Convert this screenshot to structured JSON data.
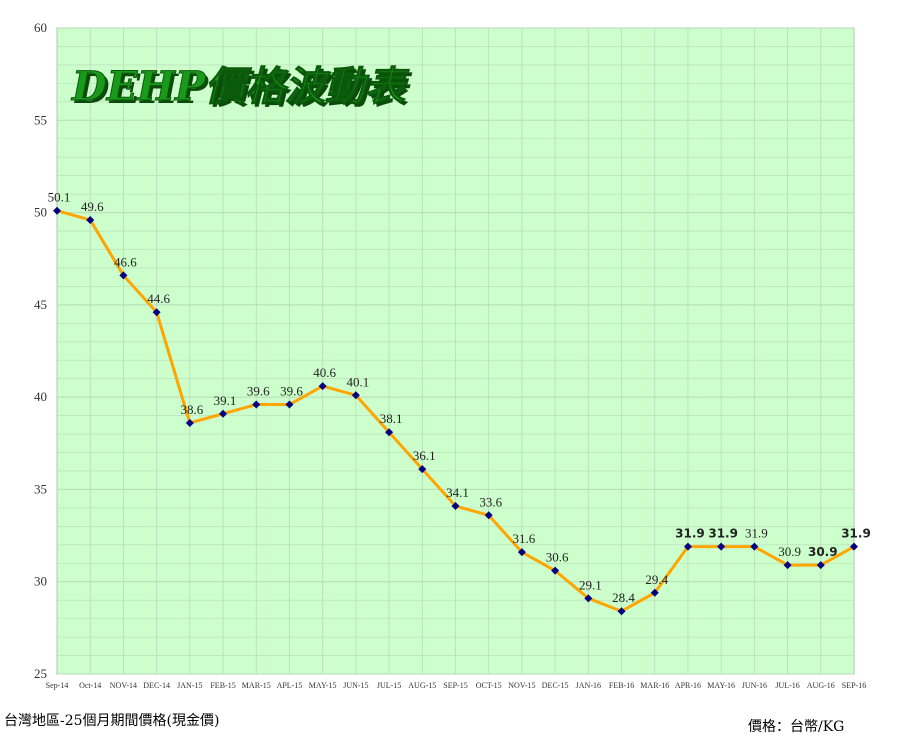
{
  "chart_data": {
    "type": "line",
    "title": "DEHP價格波動表",
    "categories": [
      "Sep-14",
      "Oct-14",
      "NOV-14",
      "DEC-14",
      "JAN-15",
      "FEB-15",
      "MAR-15",
      "APL-15",
      "MAY-15",
      "JUN-15",
      "JUL-15",
      "AUG-15",
      "SEP-15",
      "OCT-15",
      "NOV-15",
      "DEC-15",
      "JAN-16",
      "FEB-16",
      "MAR-16",
      "APR-16",
      "MAY-16",
      "JUN-16",
      "JUL-16",
      "AUG-16",
      "SEP-16"
    ],
    "values": [
      50.1,
      49.6,
      46.6,
      44.6,
      38.6,
      39.1,
      39.6,
      39.6,
      40.6,
      40.1,
      38.1,
      36.1,
      34.1,
      33.6,
      31.6,
      30.6,
      29.1,
      28.4,
      29.4,
      31.9,
      31.9,
      31.9,
      30.9,
      30.9,
      31.9
    ],
    "labels": [
      "50.1",
      "49.6",
      "46.6",
      "44.6",
      "38.6",
      "39.1",
      "39.6",
      "39.6",
      "40.6",
      "40.1",
      "38.1",
      "36.1",
      "34.1",
      "33.6",
      "31.6",
      "30.6",
      "29.1",
      "28.4",
      "29.4",
      "31.9",
      "31.9",
      "31.9",
      "30.9",
      "30.9",
      "31.9"
    ],
    "bold_labels": [
      19,
      20,
      23,
      24
    ],
    "ylim": [
      25,
      60
    ],
    "yticks": [
      25,
      30,
      35,
      40,
      45,
      50,
      55,
      60
    ],
    "grid": true,
    "colors": {
      "plot_bg": "#ccffcc",
      "line": "#ffa500",
      "marker": "#000080",
      "grid": "#b9dab9"
    }
  },
  "footer": {
    "left": "台灣地區-25個月期間價格(現金價)",
    "right": "價格：台幣/KG"
  }
}
